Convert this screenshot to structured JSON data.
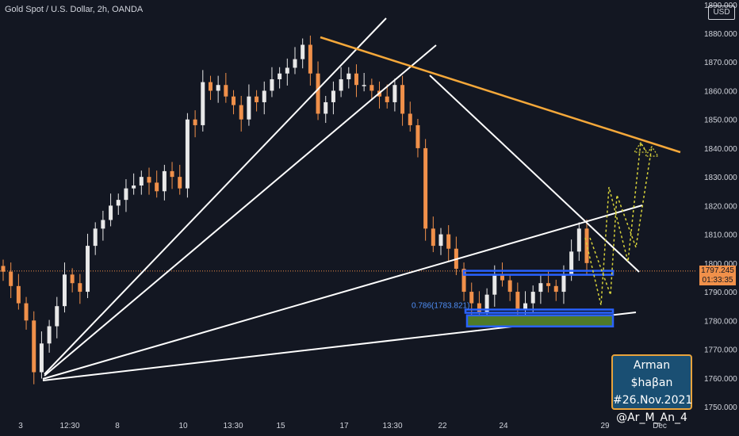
{
  "header": {
    "title": "Gold Spot / U.S. Dollar, 2h, OANDA",
    "currency": "USD"
  },
  "price_tag": {
    "price": "1797.245",
    "countdown": "01:33:35"
  },
  "fib_label": "0.786(1783.821)",
  "signature": {
    "line1": "Arman $haβan",
    "line2": "#26.Nov.2021",
    "line3": "@Ar_M_An_4"
  },
  "colors": {
    "background": "#131722",
    "up_candle": "#e8e8e8",
    "down_candle": "#f0904a",
    "trendline_orange": "#f5a83a",
    "trendline_white": "#ffffff",
    "support_box": "#2962ff",
    "support_fill": "#4f7a28",
    "projection": "#d7d23a"
  },
  "chart_data": {
    "type": "candlestick",
    "title": "Gold Spot / U.S. Dollar, 2h, OANDA",
    "ylim": [
      1750,
      1890
    ],
    "y_ticks": [
      1750,
      1760,
      1770,
      1780,
      1790,
      1800,
      1810,
      1820,
      1830,
      1840,
      1850,
      1860,
      1870,
      1880,
      1890
    ],
    "y_tick_labels": [
      "1750.000",
      "1760.000",
      "1770.000",
      "1780.000",
      "1790.000",
      "1800.000",
      "1810.000",
      "1820.000",
      "1830.000",
      "1840.000",
      "1850.000",
      "1860.000",
      "1870.000",
      "1880.000",
      "1890.000"
    ],
    "x_tick_labels": [
      "3",
      "12:30",
      "8",
      "10",
      "13:30",
      "15",
      "17",
      "13:30",
      "22",
      "24",
      "29",
      "Dec"
    ],
    "approx_close_path": [
      1797,
      1792,
      1786,
      1780,
      1762,
      1772,
      1778,
      1785,
      1796,
      1793,
      1790,
      1806,
      1812,
      1815,
      1820,
      1822,
      1826,
      1827,
      1830,
      1828,
      1825,
      1832,
      1830,
      1826,
      1850,
      1848,
      1863,
      1860,
      1862,
      1858,
      1855,
      1850,
      1858,
      1856,
      1860,
      1864,
      1866,
      1868,
      1871,
      1876,
      1866,
      1852,
      1856,
      1860,
      1864,
      1866,
      1862,
      1862,
      1860,
      1858,
      1856,
      1862,
      1852,
      1848,
      1840,
      1812,
      1806,
      1810,
      1805,
      1798,
      1790,
      1786,
      1783,
      1789,
      1796,
      1794,
      1790,
      1784,
      1786,
      1790,
      1793,
      1792,
      1790,
      1796,
      1804,
      1812,
      1800
    ],
    "current_price": 1797.245,
    "fib_level": {
      "label": "0.786(1783.821)",
      "value": 1783.821
    },
    "support_zone": [
      1778.5,
      1783.8
    ],
    "resistance_line": [
      1796.5,
      1797.5
    ],
    "projection_target": 1842
  }
}
